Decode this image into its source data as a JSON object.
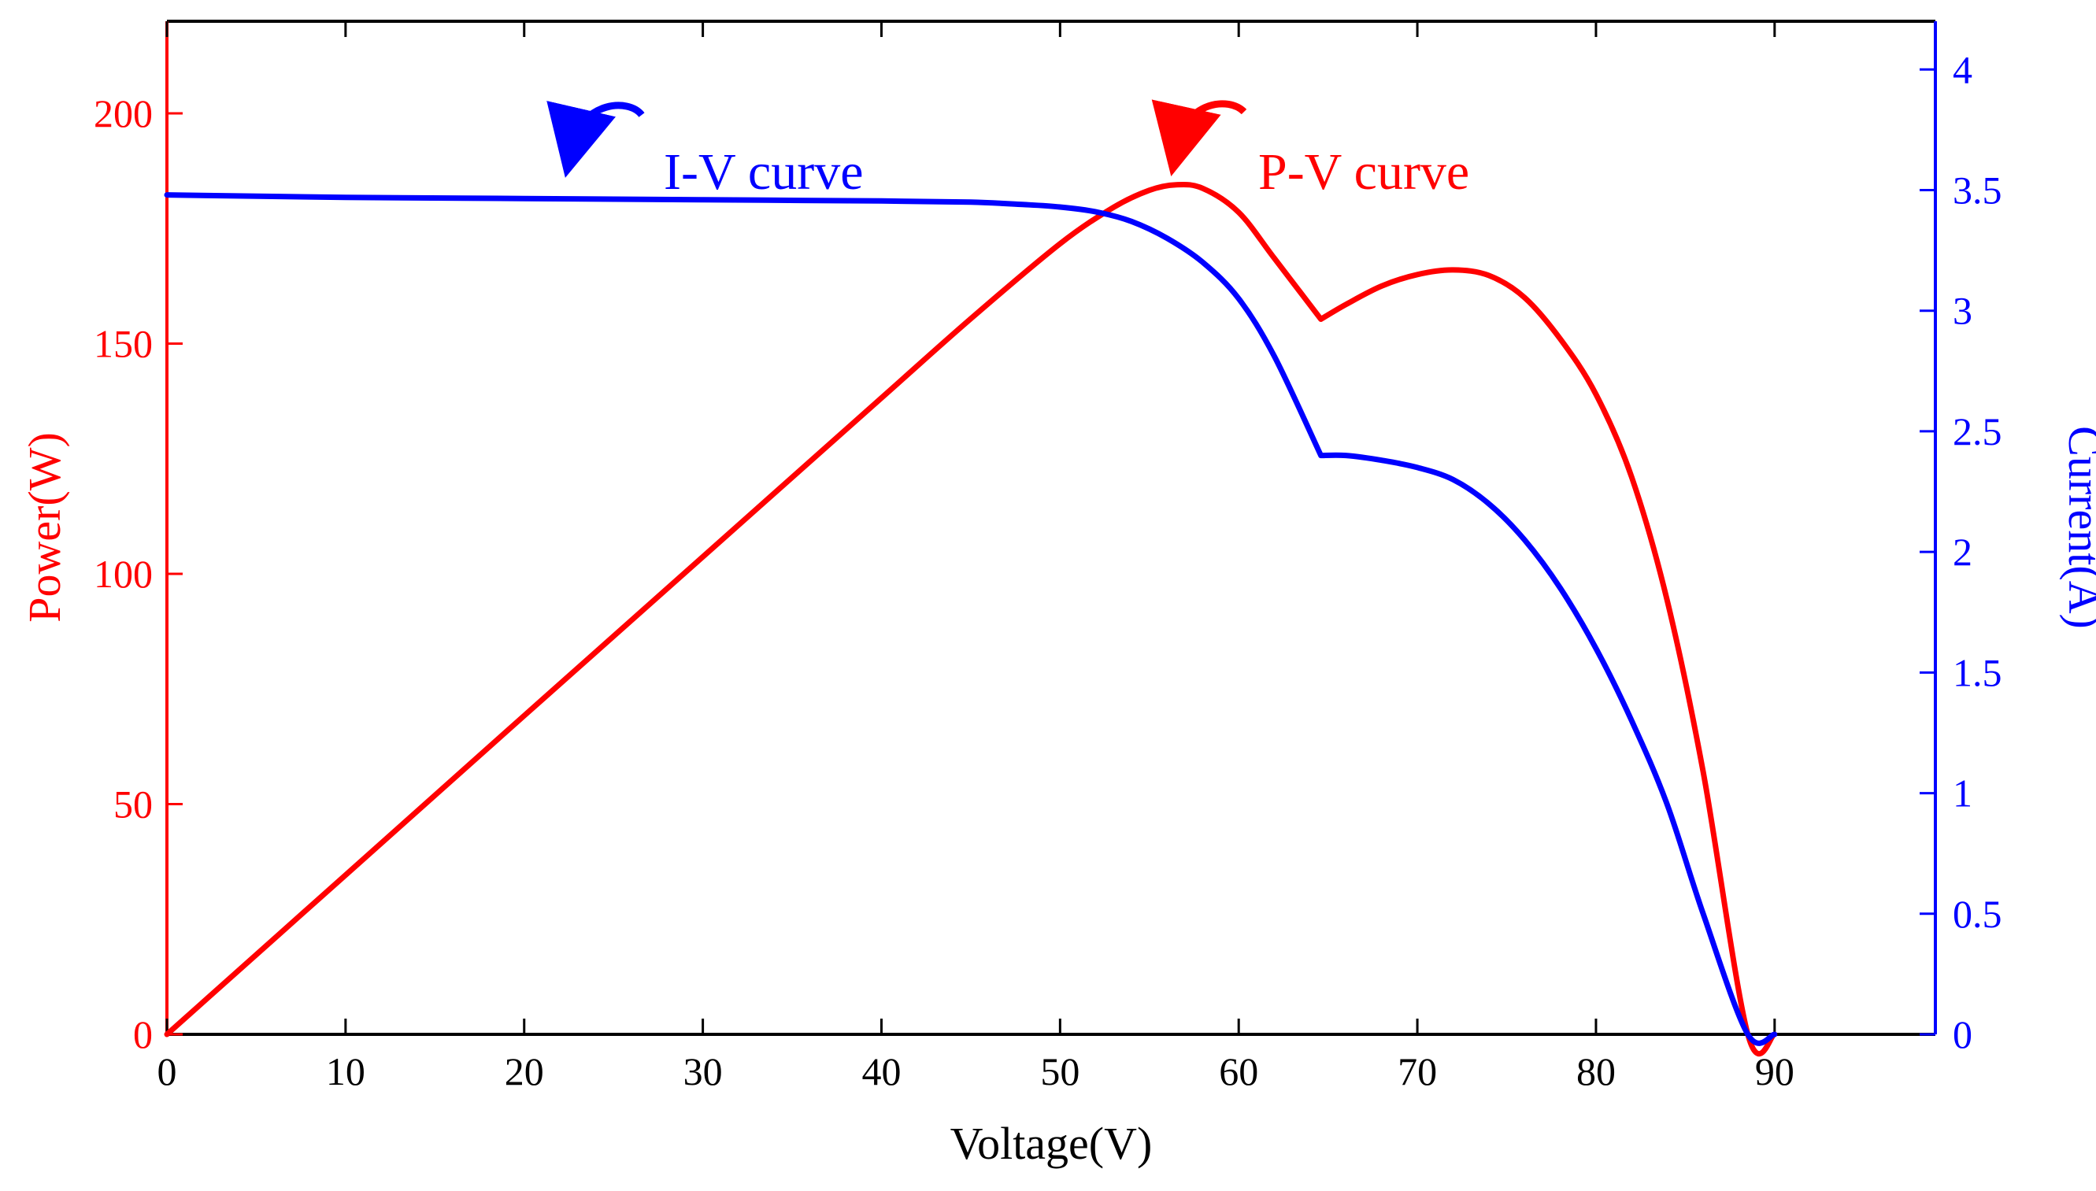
{
  "chart_data": {
    "type": "line",
    "title": "",
    "xlabel": "Voltage(V)",
    "ylabel_left": "Power(W)",
    "ylabel_right": "Current(A)",
    "xlim": [
      0,
      99
    ],
    "ylim_left": [
      0,
      220
    ],
    "ylim_right": [
      0,
      4.2
    ],
    "x_ticks": [
      0,
      10,
      20,
      30,
      40,
      50,
      60,
      70,
      80,
      90
    ],
    "x_tick_labels": [
      "0",
      "10",
      "20",
      "30",
      "40",
      "50",
      "60",
      "70",
      "80",
      "90"
    ],
    "y_left_ticks": [
      0,
      50,
      100,
      150,
      200
    ],
    "y_left_tick_labels": [
      "0",
      "50",
      "100",
      "150",
      "200"
    ],
    "y_right_ticks": [
      0,
      0.5,
      1,
      1.5,
      2,
      2.5,
      3,
      3.5,
      4
    ],
    "y_right_tick_labels": [
      "0",
      "0.5",
      "1",
      "1.5",
      "2",
      "2.5",
      "3",
      "3.5",
      "4"
    ],
    "grid": false,
    "colors": {
      "power": "#ff0000",
      "current": "#0000ff",
      "axis": "#000000"
    },
    "series": [
      {
        "name": "P-V curve",
        "axis": "left",
        "color": "#ff0000",
        "x": [
          0,
          10,
          20,
          30,
          40,
          45,
          50,
          53,
          55,
          56.5,
          58,
          60,
          62,
          64.6,
          66,
          68,
          70,
          72,
          74,
          76,
          78,
          80,
          82,
          84,
          86,
          88.5,
          90
        ],
        "y": [
          0,
          34.6,
          69.2,
          103.7,
          138.2,
          155.4,
          171.7,
          179.6,
          183.3,
          184.5,
          183.7,
          178.5,
          168.5,
          155.3,
          158.5,
          162.5,
          165,
          166,
          164.8,
          160,
          151,
          139,
          121,
          94,
          57,
          0,
          0
        ]
      },
      {
        "name": "I-V curve",
        "axis": "right",
        "color": "#0000ff",
        "x": [
          0,
          10,
          20,
          30,
          40,
          45,
          48,
          50,
          52,
          54,
          56,
          58,
          60,
          62,
          64.6,
          66,
          68,
          70,
          72,
          74,
          76,
          78,
          80,
          82,
          84,
          86,
          88.5,
          90
        ],
        "y": [
          3.48,
          3.47,
          3.465,
          3.46,
          3.455,
          3.45,
          3.44,
          3.43,
          3.41,
          3.37,
          3.3,
          3.2,
          3.05,
          2.81,
          2.4,
          2.4,
          2.38,
          2.35,
          2.3,
          2.2,
          2.05,
          1.85,
          1.6,
          1.3,
          0.95,
          0.5,
          0,
          0
        ]
      }
    ],
    "annotations": [
      {
        "text": "I-V curve",
        "x": 28.5,
        "y": 3.56,
        "axis": "right",
        "color": "#0000ff"
      },
      {
        "text": "P-V curve",
        "x": 61,
        "y": 187,
        "axis": "left",
        "color": "#ff0000"
      }
    ]
  }
}
